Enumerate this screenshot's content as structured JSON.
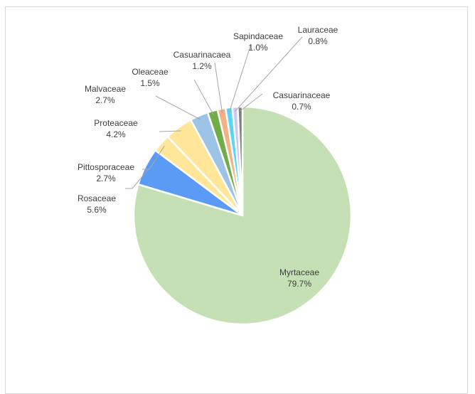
{
  "chart_data": {
    "type": "pie",
    "title": "",
    "slices": [
      {
        "label": "Myrtaceae",
        "value": 79.7,
        "display": "79.7%",
        "color": "#c5e0b4"
      },
      {
        "label": "Rosaceae",
        "value": 5.6,
        "display": "5.6%",
        "color": "#5b9bf5"
      },
      {
        "label": "Pittosporaceae",
        "value": 2.7,
        "display": "2.7%",
        "color": "#ffe699"
      },
      {
        "label": "Proteaceae",
        "value": 4.2,
        "display": "4.2%",
        "color": "#ffe699"
      },
      {
        "label": "Malvaceae",
        "value": 2.7,
        "display": "2.7%",
        "color": "#9dc3e6"
      },
      {
        "label": "Oleaceae",
        "value": 1.5,
        "display": "1.5%",
        "color": "#70ad47"
      },
      {
        "label": "Casuarinacaea",
        "value": 1.2,
        "display": "1.2%",
        "color": "#f4b183"
      },
      {
        "label": "Sapindaceae",
        "value": 1.0,
        "display": "1.0%",
        "color": "#5bd5f5"
      },
      {
        "label": "Lauraceae",
        "value": 0.8,
        "display": "0.8%",
        "color": "#c9c9f5"
      },
      {
        "label": "Casuarinaceae",
        "value": 0.7,
        "display": "0.7%",
        "color": "#7f7f7f"
      }
    ],
    "start_angle_deg": 0,
    "direction": "clockwise",
    "data_labels": "outside-with-leader-lines",
    "legend": "none"
  }
}
